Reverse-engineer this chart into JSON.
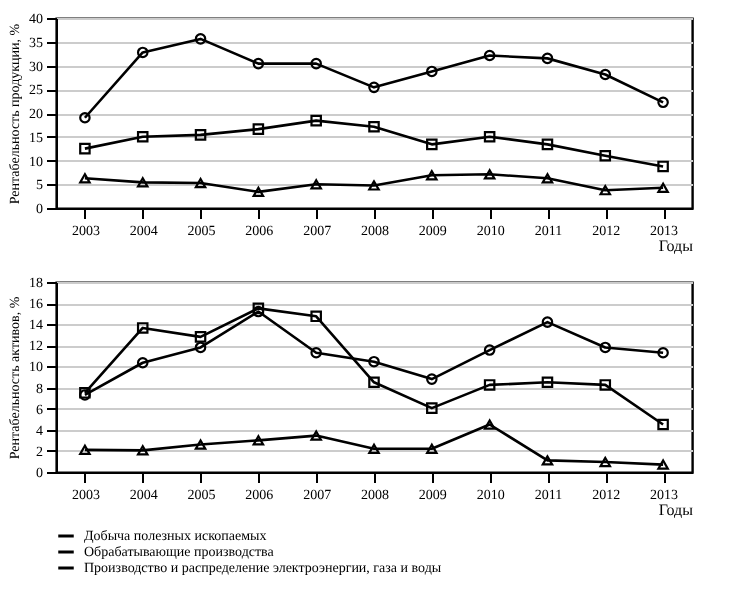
{
  "chart_data": [
    {
      "type": "line",
      "ylabel": "Рентабельность продукции, %",
      "xlabel": "Годы",
      "categories": [
        "2003",
        "2004",
        "2005",
        "2006",
        "2007",
        "2008",
        "2009",
        "2010",
        "2011",
        "2012",
        "2013"
      ],
      "ylim": [
        0,
        40
      ],
      "yticks": [
        0,
        5,
        10,
        15,
        20,
        25,
        30,
        35,
        40
      ],
      "grid": "y",
      "legend": false,
      "line_style": "solid",
      "series": [
        {
          "color": "#000000",
          "marker": "circle",
          "values": [
            19,
            32.75,
            35.6,
            30.4,
            30.4,
            25.4,
            28.75,
            32.1,
            31.5,
            28.1,
            22.25
          ]
        },
        {
          "color": "#000000",
          "marker": "square",
          "values": [
            12.5,
            15,
            15.4,
            16.6,
            18.4,
            17.1,
            13.4,
            15,
            13.4,
            11,
            8.75
          ]
        },
        {
          "color": "#000000",
          "marker": "triangle",
          "values": [
            6.25,
            5.4,
            5.25,
            3.4,
            5,
            4.75,
            6.9,
            7.1,
            6.25,
            3.75,
            4.25
          ]
        }
      ]
    },
    {
      "type": "line",
      "ylabel": "Рентабельность активов, %",
      "xlabel": "Годы",
      "categories": [
        "2003",
        "2004",
        "2005",
        "2006",
        "2007",
        "2008",
        "2009",
        "2010",
        "2011",
        "2012",
        "2013"
      ],
      "ylim": [
        0,
        18
      ],
      "yticks": [
        0,
        2,
        4,
        6,
        8,
        10,
        12,
        14,
        16,
        18
      ],
      "grid": "y",
      "legend": "bottom",
      "line_style": "solid",
      "series": [
        {
          "name": "Добыча полезных ископаемых",
          "color": "#000000",
          "marker": "circle",
          "values": [
            7.3,
            10.35,
            11.8,
            15.2,
            11.3,
            10.45,
            8.8,
            11.55,
            14.2,
            11.8,
            11.3
          ]
        },
        {
          "name": "Обрабатывающие производства",
          "color": "#000000",
          "marker": "square",
          "values": [
            7.5,
            13.65,
            12.8,
            15.5,
            14.75,
            8.5,
            6.05,
            8.25,
            8.5,
            8.25,
            4.5
          ]
        },
        {
          "name": "Производство и распределение электроэнергии, газа и воды",
          "color": "#000000",
          "marker": "triangle",
          "values": [
            2.1,
            2.05,
            2.6,
            3.0,
            3.45,
            2.2,
            2.2,
            4.5,
            1.1,
            0.95,
            0.7
          ]
        }
      ]
    }
  ]
}
